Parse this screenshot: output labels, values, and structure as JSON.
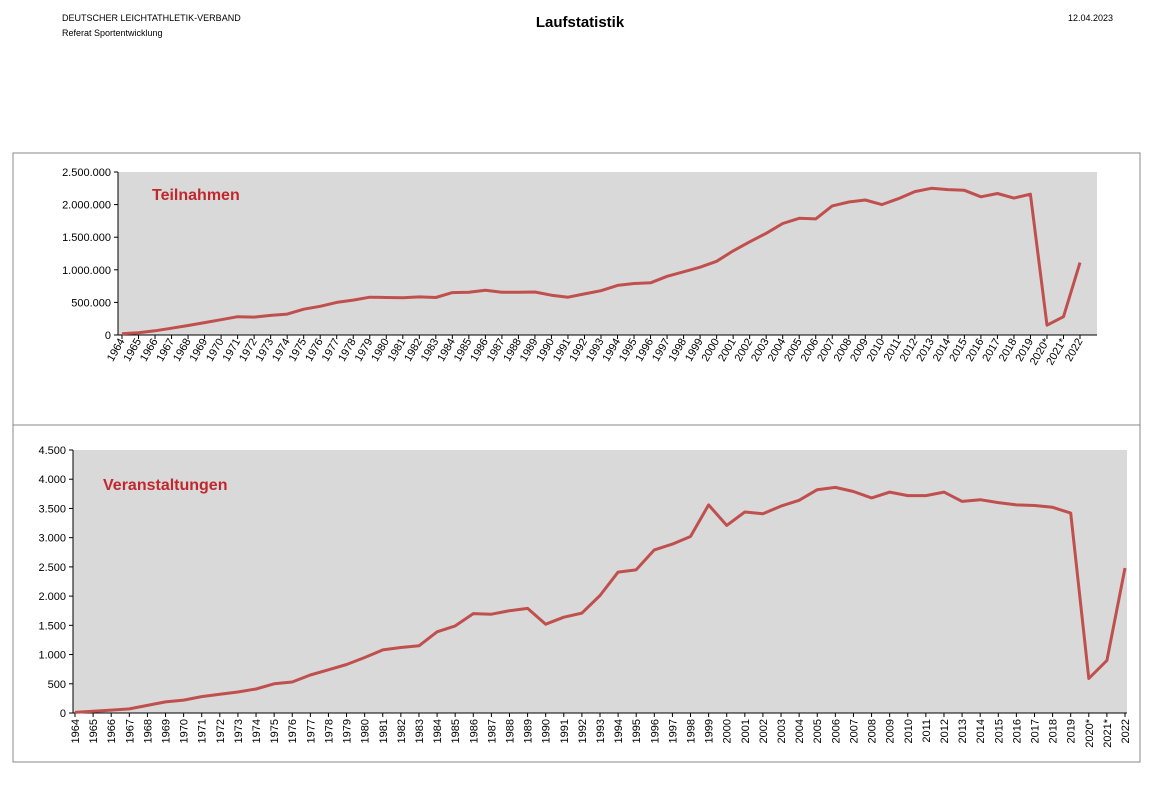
{
  "header": {
    "organization": "DEUTSCHER LEICHTATHLETIK-VERBAND",
    "department": "Referat Sportentwicklung",
    "title": "Laufstatistik",
    "date": "12.04.2023"
  },
  "chart_data": [
    {
      "type": "line",
      "title": "Teilnahmen",
      "categories": [
        "1964",
        "1965",
        "1966",
        "1967",
        "1968",
        "1969",
        "1970",
        "1971",
        "1972",
        "1973",
        "1974",
        "1975",
        "1976",
        "1977",
        "1978",
        "1979",
        "1980",
        "1981",
        "1982",
        "1983",
        "1984",
        "1985",
        "1986",
        "1987",
        "1988",
        "1989",
        "1990",
        "1991",
        "1992",
        "1993",
        "1994",
        "1995",
        "1996",
        "1997",
        "1998",
        "1999",
        "2000",
        "2001",
        "2002",
        "2003",
        "2004",
        "2005",
        "2006",
        "2007",
        "2008",
        "2009",
        "2010",
        "2011",
        "2012",
        "2013",
        "2014",
        "2015",
        "2016",
        "2017",
        "2018",
        "2019",
        "2020*",
        "2021*",
        "2022"
      ],
      "series": [
        {
          "name": "Teilnahmen",
          "color": "#c0504d",
          "values": [
            20000,
            35000,
            65000,
            105000,
            145000,
            190000,
            235000,
            280000,
            275000,
            300000,
            320000,
            395000,
            440000,
            500000,
            535000,
            580000,
            575000,
            570000,
            585000,
            575000,
            650000,
            655000,
            685000,
            655000,
            655000,
            660000,
            610000,
            580000,
            630000,
            680000,
            760000,
            790000,
            800000,
            900000,
            970000,
            1040000,
            1130000,
            1290000,
            1430000,
            1560000,
            1710000,
            1790000,
            1780000,
            1980000,
            2040000,
            2070000,
            2000000,
            2090000,
            2200000,
            2250000,
            2230000,
            2220000,
            2120000,
            2170000,
            2100000,
            2160000,
            150000,
            280000,
            1110000
          ]
        }
      ],
      "ylim": [
        0,
        2500000
      ],
      "yticks": [
        0,
        {
          "value": 500000,
          "label": "500.000"
        },
        {
          "value": 1000000,
          "label": "1.000.000"
        },
        {
          "value": 1500000,
          "label": "1.500.000"
        },
        {
          "value": 2000000,
          "label": "2.000.000"
        },
        {
          "value": 2500000,
          "label": "2.500.000"
        }
      ],
      "grid": false
    },
    {
      "type": "line",
      "title": "Veranstaltungen",
      "categories": [
        "1964",
        "1965",
        "1966",
        "1967",
        "1968",
        "1969",
        "1970",
        "1971",
        "1972",
        "1973",
        "1974",
        "1975",
        "1976",
        "1977",
        "1978",
        "1979",
        "1980",
        "1981",
        "1982",
        "1983",
        "1984",
        "1985",
        "1986",
        "1987",
        "1988",
        "1989",
        "1990",
        "1991",
        "1992",
        "1993",
        "1994",
        "1995",
        "1996",
        "1997",
        "1998",
        "1999",
        "2000",
        "2001",
        "2002",
        "2003",
        "2004",
        "2005",
        "2006",
        "2007",
        "2008",
        "2009",
        "2010",
        "2011",
        "2012",
        "2013",
        "2014",
        "2015",
        "2016",
        "2017",
        "2018",
        "2019",
        "2020*",
        "2021*",
        "2022"
      ],
      "series": [
        {
          "name": "Veranstaltungen",
          "color": "#c0504d",
          "values": [
            10,
            30,
            50,
            70,
            130,
            190,
            220,
            280,
            320,
            360,
            410,
            500,
            530,
            650,
            740,
            830,
            950,
            1080,
            1120,
            1150,
            1390,
            1490,
            1700,
            1690,
            1750,
            1790,
            1520,
            1640,
            1710,
            2010,
            2410,
            2450,
            2790,
            2890,
            3020,
            3560,
            3210,
            3440,
            3410,
            3540,
            3640,
            3820,
            3860,
            3790,
            3680,
            3780,
            3720,
            3720,
            3780,
            3620,
            3650,
            3600,
            3560,
            3550,
            3520,
            3420,
            590,
            900,
            2480
          ]
        }
      ],
      "ylim": [
        0,
        4500
      ],
      "yticks": [
        0,
        500,
        {
          "value": 1000,
          "label": "1.000"
        },
        {
          "value": 1500,
          "label": "1.500"
        },
        {
          "value": 2000,
          "label": "2.000"
        },
        {
          "value": 2500,
          "label": "2.500"
        },
        {
          "value": 3000,
          "label": "3.000"
        },
        {
          "value": 3500,
          "label": "3.500"
        },
        {
          "value": 4000,
          "label": "4.000"
        },
        {
          "value": 4500,
          "label": "4.500"
        }
      ],
      "grid": false
    }
  ]
}
